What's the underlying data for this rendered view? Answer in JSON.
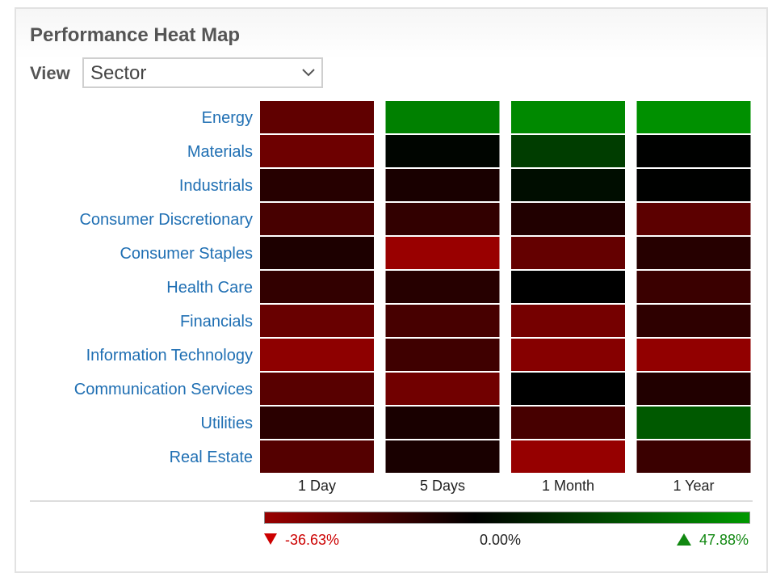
{
  "title": "Performance Heat Map",
  "view": {
    "label": "View",
    "selected": "Sector"
  },
  "chart_data": {
    "type": "heatmap",
    "rows": [
      "Energy",
      "Materials",
      "Industrials",
      "Consumer Discretionary",
      "Consumer Staples",
      "Health Care",
      "Financials",
      "Information Technology",
      "Communication Services",
      "Utilities",
      "Real Estate"
    ],
    "columns": [
      "1 Day",
      "5 Days",
      "1 Month",
      "1 Year"
    ],
    "values": [
      [
        -23.0,
        40.0,
        43.0,
        45.0
      ],
      [
        -26.0,
        1.5,
        19.0,
        0.4
      ],
      [
        -9.0,
        -6.0,
        4.0,
        0.3
      ],
      [
        -17.0,
        -12.0,
        -8.0,
        -22.0
      ],
      [
        -7.0,
        -36.63,
        -24.0,
        -9.0
      ],
      [
        -12.0,
        -9.0,
        0.0,
        -14.0
      ],
      [
        -25.0,
        -17.0,
        -28.0,
        -11.0
      ],
      [
        -34.0,
        -15.0,
        -32.0,
        -35.0
      ],
      [
        -21.0,
        -27.0,
        0.0,
        -8.0
      ],
      [
        -10.0,
        -6.0,
        -17.0,
        28.0
      ],
      [
        -20.0,
        -6.0,
        -36.0,
        -14.0
      ]
    ],
    "scale": {
      "min": -36.63,
      "mid": 0,
      "max": 47.88,
      "min_label": "-36.63%",
      "mid_label": "0.00%",
      "max_label": "47.88%",
      "low_color": "#990000",
      "mid_color": "#000000",
      "high_color": "#009900"
    },
    "label_color": "#1f6fb3"
  }
}
